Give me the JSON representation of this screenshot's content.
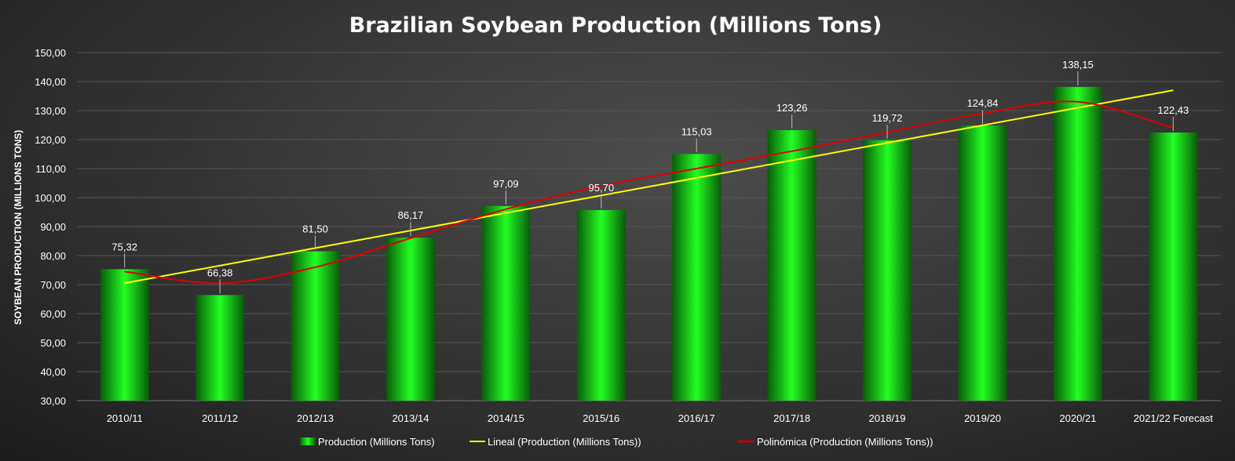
{
  "chart_data": {
    "type": "bar",
    "title": "Brazilian Soybean Production (Millions Tons)",
    "xlabel": "",
    "ylabel": "SOYBEAN PRODUCTION (MILLIONS TONS)",
    "ylim": [
      30,
      150
    ],
    "ytick_step": 10,
    "yticks": [
      "30,00",
      "40,00",
      "50,00",
      "60,00",
      "70,00",
      "80,00",
      "90,00",
      "100,00",
      "110,00",
      "120,00",
      "130,00",
      "140,00",
      "150,00"
    ],
    "grid": true,
    "legend_position": "bottom",
    "categories": [
      "2010/11",
      "2011/12",
      "2012/13",
      "2013/14",
      "2014/15",
      "2015/16",
      "2016/17",
      "2017/18",
      "2018/19",
      "2019/20",
      "2020/21",
      "2021/22 Forecast"
    ],
    "series": [
      {
        "name": "Production (Millions Tons)",
        "type": "bar",
        "values": [
          75.32,
          66.38,
          81.5,
          86.17,
          97.09,
          95.7,
          115.03,
          123.26,
          119.72,
          124.84,
          138.15,
          122.43
        ],
        "labels": [
          "75,32",
          "66,38",
          "81,50",
          "86,17",
          "97,09",
          "95,70",
          "115,03",
          "123,26",
          "119,72",
          "124,84",
          "138,15",
          "122,43"
        ],
        "color": "#00e000"
      },
      {
        "name": "Lineal (Production (Millions Tons))",
        "type": "linear-trend",
        "values": [
          70.5,
          76.5,
          82.5,
          88.5,
          94.5,
          100.5,
          106.5,
          112.5,
          118.5,
          124.5,
          131,
          137
        ],
        "color": "#ffff00"
      },
      {
        "name": "Polinómica (Production (Millions Tons))",
        "type": "polynomial-trend",
        "values": [
          74.5,
          70.5,
          76,
          86,
          96,
          104,
          110,
          116,
          122.5,
          129,
          133,
          124
        ],
        "color": "#e00000"
      }
    ]
  }
}
